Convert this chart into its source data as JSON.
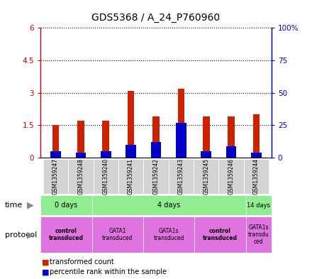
{
  "title": "GDS5368 / A_24_P760960",
  "samples": [
    "GSM1359247",
    "GSM1359248",
    "GSM1359240",
    "GSM1359241",
    "GSM1359242",
    "GSM1359243",
    "GSM1359245",
    "GSM1359246",
    "GSM1359244"
  ],
  "red_values": [
    1.5,
    1.7,
    1.7,
    3.1,
    1.9,
    3.2,
    1.9,
    1.9,
    2.0
  ],
  "blue_values_pct": [
    5,
    4,
    5,
    10,
    12,
    27,
    5,
    9,
    4
  ],
  "ylim_left": [
    0,
    6
  ],
  "ylim_right": [
    0,
    100
  ],
  "yticks_left": [
    0,
    1.5,
    3.0,
    4.5,
    6.0
  ],
  "yticks_left_labels": [
    "0",
    "1.5",
    "3",
    "4.5",
    "6"
  ],
  "yticks_right": [
    0,
    25,
    50,
    75,
    100
  ],
  "yticks_right_labels": [
    "0",
    "25",
    "50",
    "75",
    "100%"
  ],
  "left_axis_color": "#cc0000",
  "right_axis_color": "#0000cc",
  "bar_width": 0.55,
  "time_groups": [
    {
      "label": "0 days",
      "start": 0,
      "end": 2
    },
    {
      "label": "4 days",
      "start": 2,
      "end": 8
    },
    {
      "label": "14 days",
      "start": 8,
      "end": 9
    }
  ],
  "protocol_groups": [
    {
      "label": "control\ntransduced",
      "start": 0,
      "end": 2,
      "bold": true
    },
    {
      "label": "GATA1\ntransduced",
      "start": 2,
      "end": 4,
      "bold": false
    },
    {
      "label": "GATA1s\ntransduced",
      "start": 4,
      "end": 6,
      "bold": false
    },
    {
      "label": "control\ntransduced",
      "start": 6,
      "end": 8,
      "bold": true
    },
    {
      "label": "GATA1s\ntransdu\nced",
      "start": 8,
      "end": 9,
      "bold": false
    }
  ],
  "legend_red_label": "transformed count",
  "legend_blue_label": "percentile rank within the sample",
  "background_color": "#ffffff",
  "plot_bg_color": "#ffffff",
  "green_color": "#90ee90",
  "purple_color": "#df73df",
  "gray_color": "#d3d3d3"
}
